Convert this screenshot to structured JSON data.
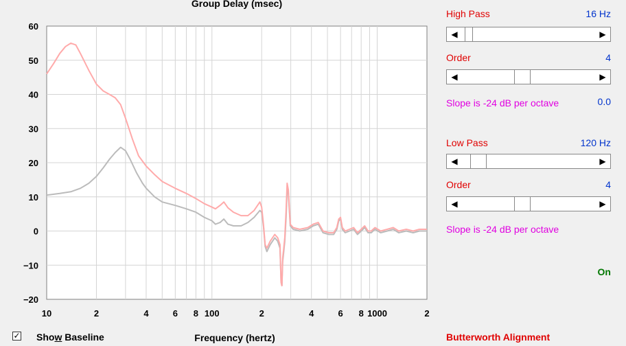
{
  "chart_data": {
    "type": "line",
    "title": "Group Delay (msec)",
    "xlabel": "Frequency (hertz)",
    "ylabel": "",
    "x_scale": "log",
    "xlim": [
      10,
      2000
    ],
    "ylim": [
      -20,
      60
    ],
    "yticks": [
      60,
      50,
      40,
      30,
      20,
      10,
      0,
      -10,
      -20
    ],
    "xtick_labels": [
      {
        "x": 10,
        "label": "10"
      },
      {
        "x": 20,
        "label": "2"
      },
      {
        "x": 40,
        "label": "4"
      },
      {
        "x": 60,
        "label": "6"
      },
      {
        "x": 80,
        "label": "8"
      },
      {
        "x": 100,
        "label": "100"
      },
      {
        "x": 200,
        "label": "2"
      },
      {
        "x": 400,
        "label": "4"
      },
      {
        "x": 600,
        "label": "6"
      },
      {
        "x": 800,
        "label": "8"
      },
      {
        "x": 1000,
        "label": "1000"
      },
      {
        "x": 2000,
        "label": "2"
      }
    ],
    "grid": true,
    "series": [
      {
        "color": "#ffaaaa",
        "points": [
          [
            10,
            46
          ],
          [
            11,
            49
          ],
          [
            12,
            52
          ],
          [
            13,
            54
          ],
          [
            14,
            55
          ],
          [
            15,
            54.5
          ],
          [
            16,
            52
          ],
          [
            18,
            47
          ],
          [
            20,
            43
          ],
          [
            22,
            41
          ],
          [
            24,
            40
          ],
          [
            26,
            39
          ],
          [
            28,
            37
          ],
          [
            30,
            33
          ],
          [
            33,
            27
          ],
          [
            36,
            22
          ],
          [
            40,
            19
          ],
          [
            45,
            16.5
          ],
          [
            50,
            14.5
          ],
          [
            60,
            12.5
          ],
          [
            70,
            11
          ],
          [
            80,
            9.5
          ],
          [
            90,
            8
          ],
          [
            100,
            7
          ],
          [
            105,
            6.5
          ],
          [
            112,
            7.5
          ],
          [
            118,
            8.5
          ],
          [
            125,
            6.8
          ],
          [
            135,
            5.5
          ],
          [
            150,
            4.5
          ],
          [
            165,
            4.5
          ],
          [
            180,
            6
          ],
          [
            195,
            8.5
          ],
          [
            200,
            7
          ],
          [
            205,
            2
          ],
          [
            210,
            -4
          ],
          [
            215,
            -5
          ],
          [
            225,
            -3
          ],
          [
            240,
            -1
          ],
          [
            250,
            -2
          ],
          [
            258,
            -4
          ],
          [
            262,
            -15
          ],
          [
            265,
            -16
          ],
          [
            268,
            -8
          ],
          [
            272,
            -5
          ],
          [
            276,
            -2
          ],
          [
            281,
            6
          ],
          [
            285,
            14
          ],
          [
            290,
            12
          ],
          [
            298,
            2
          ],
          [
            310,
            1
          ],
          [
            340,
            0.5
          ],
          [
            380,
            1
          ],
          [
            410,
            2
          ],
          [
            440,
            2.5
          ],
          [
            470,
            0
          ],
          [
            510,
            -0.5
          ],
          [
            545,
            -0.5
          ],
          [
            570,
            1
          ],
          [
            585,
            3.5
          ],
          [
            600,
            4
          ],
          [
            615,
            1
          ],
          [
            640,
            0
          ],
          [
            680,
            0.5
          ],
          [
            720,
            1
          ],
          [
            760,
            -0.5
          ],
          [
            800,
            0.5
          ],
          [
            840,
            1.5
          ],
          [
            880,
            0
          ],
          [
            920,
            0
          ],
          [
            970,
            1
          ],
          [
            1050,
            0
          ],
          [
            1150,
            0.5
          ],
          [
            1250,
            1
          ],
          [
            1350,
            0
          ],
          [
            1500,
            0.5
          ],
          [
            1650,
            0
          ],
          [
            1800,
            0.5
          ],
          [
            2000,
            0.5
          ]
        ]
      },
      {
        "color": "#bbbbbb",
        "points": [
          [
            10,
            10.5
          ],
          [
            12,
            11
          ],
          [
            14,
            11.5
          ],
          [
            16,
            12.5
          ],
          [
            18,
            14
          ],
          [
            20,
            16
          ],
          [
            22,
            18.5
          ],
          [
            24,
            21
          ],
          [
            26,
            23
          ],
          [
            28,
            24.5
          ],
          [
            30,
            23.5
          ],
          [
            32,
            21
          ],
          [
            35,
            17
          ],
          [
            38,
            14
          ],
          [
            40,
            12.5
          ],
          [
            45,
            10
          ],
          [
            50,
            8.5
          ],
          [
            60,
            7.5
          ],
          [
            70,
            6.5
          ],
          [
            80,
            5.5
          ],
          [
            90,
            4
          ],
          [
            100,
            3
          ],
          [
            105,
            2
          ],
          [
            112,
            2.5
          ],
          [
            118,
            3.5
          ],
          [
            125,
            2
          ],
          [
            135,
            1.5
          ],
          [
            150,
            1.5
          ],
          [
            165,
            2.5
          ],
          [
            180,
            4
          ],
          [
            195,
            6
          ],
          [
            200,
            5.5
          ],
          [
            205,
            1.5
          ],
          [
            210,
            -4.5
          ],
          [
            215,
            -6
          ],
          [
            225,
            -4
          ],
          [
            240,
            -2
          ],
          [
            250,
            -3
          ],
          [
            258,
            -5
          ],
          [
            262,
            -15
          ],
          [
            265,
            -16
          ],
          [
            268,
            -9
          ],
          [
            272,
            -6
          ],
          [
            276,
            -3
          ],
          [
            281,
            4
          ],
          [
            285,
            12
          ],
          [
            290,
            11
          ],
          [
            298,
            1.5
          ],
          [
            310,
            0.5
          ],
          [
            340,
            0
          ],
          [
            380,
            0.5
          ],
          [
            410,
            1.5
          ],
          [
            440,
            2
          ],
          [
            470,
            -0.5
          ],
          [
            510,
            -1
          ],
          [
            545,
            -1
          ],
          [
            570,
            0.5
          ],
          [
            585,
            3
          ],
          [
            600,
            3.5
          ],
          [
            615,
            0.5
          ],
          [
            640,
            -0.5
          ],
          [
            680,
            0
          ],
          [
            720,
            0.5
          ],
          [
            760,
            -1
          ],
          [
            800,
            0
          ],
          [
            840,
            1
          ],
          [
            880,
            -0.5
          ],
          [
            920,
            -0.5
          ],
          [
            970,
            0.5
          ],
          [
            1050,
            -0.5
          ],
          [
            1150,
            0
          ],
          [
            1250,
            0.5
          ],
          [
            1350,
            -0.5
          ],
          [
            1500,
            0
          ],
          [
            1650,
            -0.5
          ],
          [
            1800,
            0
          ],
          [
            2000,
            0
          ]
        ]
      }
    ]
  },
  "controls": {
    "high_pass": {
      "label": "High Pass",
      "value": "16 Hz",
      "position": 0.03
    },
    "high_pass_order": {
      "label": "Order",
      "value": "4",
      "position": 0.5
    },
    "high_pass_slope": {
      "text": "Slope is -24 dB per octave",
      "value": "0.0"
    },
    "low_pass": {
      "label": "Low Pass",
      "value": "120 Hz",
      "position": 0.12
    },
    "low_pass_order": {
      "label": "Order",
      "value": "4",
      "position": 0.5
    },
    "low_pass_slope": {
      "text": "Slope is -24 dB per octave"
    },
    "status": "On",
    "alignment": "Butterworth Alignment"
  },
  "footer": {
    "show_baseline_checked": true,
    "show_baseline_pre": "Sho",
    "show_baseline_accel": "w",
    "show_baseline_post": " Baseline"
  },
  "colors": {
    "label_red": "#e00000",
    "value_blue": "#0033cc",
    "slope_magenta": "#e000e0",
    "status_green": "#007700"
  },
  "icons": {
    "scroll_left": "left-arrow-icon",
    "scroll_right": "right-arrow-icon",
    "check": "check-icon"
  }
}
